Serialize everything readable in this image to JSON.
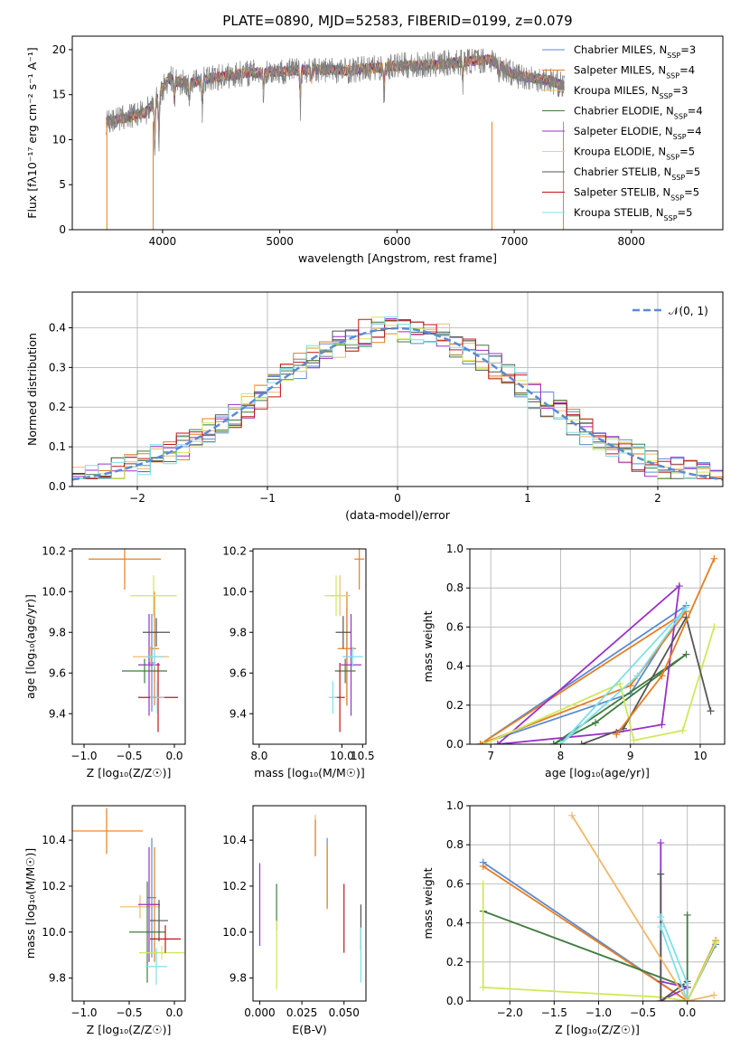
{
  "figure": {
    "title": "PLATE=0890, MJD=52583, FIBERID=0199, z=0.079"
  },
  "series": [
    {
      "name": "Chabrier MILES",
      "nssp": "3",
      "color": "#5a8ad6"
    },
    {
      "name": "Salpeter MILES",
      "nssp": "4",
      "color": "#e67e22"
    },
    {
      "name": "Kroupa MILES",
      "nssp": "3",
      "color": "#f0b86b"
    },
    {
      "name": "Chabrier ELODIE",
      "nssp": "4",
      "color": "#3f7b3f"
    },
    {
      "name": "Salpeter ELODIE",
      "nssp": "4",
      "color": "#9b30c8"
    },
    {
      "name": "Kroupa ELODIE",
      "nssp": "5",
      "color": "#cfe85a"
    },
    {
      "name": "Chabrier STELIB",
      "nssp": "5",
      "color": "#555555"
    },
    {
      "name": "Salpeter STELIB",
      "nssp": "5",
      "color": "#c0151b"
    },
    {
      "name": "Kroupa STELIB",
      "nssp": "5",
      "color": "#7ee0e8"
    }
  ],
  "chart_data": [
    {
      "id": "spectrum",
      "type": "line",
      "xlabel": "wavelength [Angstrom, rest frame]",
      "ylabel": "Flux [fλ10⁻¹⁷ erg cm⁻² s⁻¹ A⁻¹]",
      "xlim": [
        3230,
        8780
      ],
      "ylim": [
        0,
        21.5
      ],
      "xticks": [
        4000,
        5000,
        6000,
        7000,
        8000
      ],
      "yticks": [
        0,
        5,
        10,
        15,
        20
      ],
      "data_color": "#808080",
      "continuum": [
        [
          3530,
          12.0
        ],
        [
          3700,
          12.5
        ],
        [
          3850,
          13.0
        ],
        [
          3950,
          14.5
        ],
        [
          4050,
          16.8
        ],
        [
          4200,
          16.2
        ],
        [
          4400,
          16.8
        ],
        [
          4700,
          17.4
        ],
        [
          5000,
          17.6
        ],
        [
          5300,
          17.8
        ],
        [
          5600,
          17.7
        ],
        [
          6000,
          18.2
        ],
        [
          6300,
          18.3
        ],
        [
          6600,
          18.7
        ],
        [
          6800,
          18.9
        ],
        [
          7000,
          17.2
        ],
        [
          7300,
          16.6
        ],
        [
          7420,
          16.0
        ]
      ],
      "data_range": [
        3520,
        7430
      ],
      "absorption_lines": [
        [
          3934,
          7
        ],
        [
          3969,
          6
        ],
        [
          4102,
          3
        ],
        [
          4227,
          2.5
        ],
        [
          4340,
          3.5
        ],
        [
          4861,
          2.5
        ],
        [
          5175,
          4.5
        ],
        [
          5270,
          2
        ],
        [
          5890,
          3.5
        ],
        [
          6563,
          2.5
        ],
        [
          6870,
          2
        ],
        [
          7600,
          1.5
        ]
      ]
    },
    {
      "id": "residuals",
      "type": "histogram",
      "xlabel": "(data-model)/error",
      "ylabel": "Normed distribution",
      "xlim": [
        -2.5,
        2.5
      ],
      "ylim": [
        0,
        0.49
      ],
      "xticks": [
        -2,
        -1,
        0,
        1,
        2
      ],
      "yticks": [
        0.0,
        0.1,
        0.2,
        0.3,
        0.4
      ],
      "legend": "𝒩(0, 1)",
      "legend_color": "#5a8ad6",
      "bin_width": 0.1,
      "grid": true
    },
    {
      "id": "age-vs-z",
      "type": "scatter",
      "xlabel": "Z [log₁₀(Z/Z☉)]",
      "ylabel": "age  [log₁₀(age/yr)]",
      "xlim": [
        -1.13,
        0.12
      ],
      "ylim": [
        9.25,
        10.21
      ],
      "xticks": [
        -1.0,
        -0.5,
        0.0
      ],
      "yticks": [
        9.4,
        9.6,
        9.8,
        10.0,
        10.2
      ],
      "points": [
        {
          "s": 0,
          "x": -0.25,
          "xerr": 0.04,
          "y": 9.65,
          "yerr": 0.24
        },
        {
          "s": 1,
          "x": -0.22,
          "xerr": 0.05,
          "y": 9.72,
          "yerr": 0.28
        },
        {
          "s": 2,
          "x": -0.26,
          "xerr": 0.2,
          "y": 9.68,
          "yerr": 0.05
        },
        {
          "s": 3,
          "x": -0.33,
          "xerr": 0.25,
          "y": 9.61,
          "yerr": 0.06
        },
        {
          "s": 4,
          "x": -0.28,
          "xerr": 0.12,
          "y": 9.64,
          "yerr": 0.25
        },
        {
          "s": 5,
          "x": -0.23,
          "xerr": 0.26,
          "y": 9.98,
          "yerr": 0.1
        },
        {
          "s": 6,
          "x": -0.2,
          "xerr": 0.15,
          "y": 9.8,
          "yerr": 0.07
        },
        {
          "s": 7,
          "x": -0.18,
          "xerr": 0.22,
          "y": 9.48,
          "yerr": 0.17
        },
        {
          "s": 8,
          "x": -0.19,
          "xerr": 0.08,
          "y": 9.48,
          "yerr": 0.08
        },
        {
          "s": 8,
          "x": -0.22,
          "xerr": 0.1,
          "y": 9.68,
          "yerr": 0.05
        },
        {
          "s": 1,
          "x": -0.55,
          "xerr": 0.4,
          "y": 10.16,
          "yerr": 0.15
        }
      ]
    },
    {
      "id": "age-vs-mass",
      "type": "scatter",
      "xlabel": "mass [log₁₀(M/M☉)]",
      "ylabel": "",
      "xlim": [
        7.85,
        10.58
      ],
      "ylim": [
        9.25,
        10.21
      ],
      "xticks": [
        8.0,
        10.0,
        10.5
      ],
      "yticks": [
        9.4,
        9.6,
        9.8,
        10.0,
        10.2
      ],
      "points": [
        {
          "s": 0,
          "x": 10.12,
          "xerr": 0.05,
          "y": 9.68,
          "yerr": 0.24
        },
        {
          "s": 1,
          "x": 10.12,
          "xerr": 0.22,
          "y": 9.72,
          "yerr": 0.28
        },
        {
          "s": 2,
          "x": 9.95,
          "xerr": 0.25,
          "y": 9.98,
          "yerr": 0.1
        },
        {
          "s": 3,
          "x": 10.08,
          "xerr": 0.25,
          "y": 9.61,
          "yerr": 0.06
        },
        {
          "s": 4,
          "x": 10.22,
          "xerr": 0.25,
          "y": 9.64,
          "yerr": 0.25
        },
        {
          "s": 5,
          "x": 9.86,
          "xerr": 0.28,
          "y": 9.98,
          "yerr": 0.1
        },
        {
          "s": 6,
          "x": 10.03,
          "xerr": 0.18,
          "y": 9.8,
          "yerr": 0.08
        },
        {
          "s": 7,
          "x": 9.95,
          "xerr": 0.12,
          "y": 9.48,
          "yerr": 0.17
        },
        {
          "s": 8,
          "x": 9.78,
          "xerr": 0.1,
          "y": 9.48,
          "yerr": 0.08
        },
        {
          "s": 8,
          "x": 10.26,
          "xerr": 0.25,
          "y": 9.68,
          "yerr": 0.05
        },
        {
          "s": 1,
          "x": 10.42,
          "xerr": 0.12,
          "y": 10.16,
          "yerr": 0.15
        }
      ]
    },
    {
      "id": "weight-vs-age",
      "type": "line",
      "xlabel": "age  [log₁₀(age/yr)]",
      "ylabel": "mass weight",
      "xlim": [
        6.7,
        10.35
      ],
      "ylim": [
        0,
        1.0
      ],
      "xticks": [
        7,
        8,
        9,
        10
      ],
      "yticks": [
        0.0,
        0.2,
        0.4,
        0.6,
        0.8,
        1.0
      ],
      "grid": true,
      "series": [
        {
          "s": 0,
          "points": [
            [
              6.85,
              0.0
            ],
            [
              9.0,
              0.26
            ],
            [
              9.8,
              0.71
            ],
            [
              6.85,
              0.0
            ]
          ]
        },
        {
          "s": 1,
          "points": [
            [
              6.85,
              0.0
            ],
            [
              9.0,
              0.3
            ],
            [
              9.8,
              0.68
            ],
            [
              6.85,
              0.0
            ]
          ]
        },
        {
          "s": 3,
          "points": [
            [
              7.9,
              0.0
            ],
            [
              8.5,
              0.11
            ],
            [
              9.8,
              0.46
            ],
            [
              7.9,
              0.0
            ]
          ]
        },
        {
          "s": 4,
          "points": [
            [
              7.1,
              0.0
            ],
            [
              8.8,
              0.06
            ],
            [
              9.45,
              0.1
            ],
            [
              9.7,
              0.81
            ],
            [
              7.1,
              0.0
            ]
          ]
        },
        {
          "s": 5,
          "points": [
            [
              6.9,
              0.0
            ],
            [
              8.85,
              0.31
            ],
            [
              9.05,
              0.02
            ],
            [
              9.75,
              0.07
            ],
            [
              10.2,
              0.6
            ]
          ]
        },
        {
          "s": 6,
          "points": [
            [
              8.3,
              0.0
            ],
            [
              8.9,
              0.08
            ],
            [
              9.8,
              0.65
            ],
            [
              10.15,
              0.17
            ]
          ]
        },
        {
          "s": 8,
          "points": [
            [
              8.0,
              0.0
            ],
            [
              9.1,
              0.35
            ],
            [
              9.8,
              0.7
            ],
            [
              8.0,
              0.0
            ]
          ]
        },
        {
          "s": 1,
          "points": [
            [
              8.8,
              0.05
            ],
            [
              9.45,
              0.35
            ],
            [
              10.2,
              0.95
            ]
          ]
        }
      ]
    },
    {
      "id": "mass-vs-z",
      "type": "scatter",
      "xlabel": "Z [log₁₀(Z/Z☉)]",
      "ylabel": "mass [log₁₀(M/M☉)]",
      "xlim": [
        -1.13,
        0.12
      ],
      "ylim": [
        9.7,
        10.55
      ],
      "xticks": [
        -1.0,
        -0.5,
        0.0
      ],
      "yticks": [
        9.8,
        10.0,
        10.2,
        10.4
      ],
      "points": [
        {
          "s": 0,
          "x": -0.25,
          "xerr": 0.05,
          "y": 10.15,
          "yerr": 0.26
        },
        {
          "s": 1,
          "x": -0.22,
          "xerr": 0.04,
          "y": 10.12,
          "yerr": 0.25
        },
        {
          "s": 2,
          "x": -0.38,
          "xerr": 0.22,
          "y": 10.11,
          "yerr": 0.05
        },
        {
          "s": 3,
          "x": -0.3,
          "xerr": 0.2,
          "y": 10.0,
          "yerr": 0.22
        },
        {
          "s": 4,
          "x": -0.28,
          "xerr": 0.12,
          "y": 10.12,
          "yerr": 0.25
        },
        {
          "s": 5,
          "x": -0.14,
          "xerr": 0.25,
          "y": 9.91,
          "yerr": 0.03
        },
        {
          "s": 6,
          "x": -0.17,
          "xerr": 0.1,
          "y": 10.05,
          "yerr": 0.09
        },
        {
          "s": 7,
          "x": -0.1,
          "xerr": 0.17,
          "y": 9.97,
          "yerr": 0.06
        },
        {
          "s": 8,
          "x": -0.2,
          "xerr": 0.12,
          "y": 9.85,
          "yerr": 0.08
        },
        {
          "s": 1,
          "x": -0.75,
          "xerr": 0.4,
          "y": 10.44,
          "yerr": 0.1
        }
      ]
    },
    {
      "id": "mass-vs-ebv",
      "type": "scatter",
      "xlabel": "E(B-V)",
      "ylabel": "",
      "xlim": [
        -0.004,
        0.063
      ],
      "ylim": [
        9.7,
        10.55
      ],
      "xticks": [
        0.0,
        0.025,
        0.05
      ],
      "yticks": [
        9.8,
        10.0,
        10.2,
        10.4
      ],
      "points": [
        {
          "s": 0,
          "x": 0.04,
          "xerr": 0,
          "y": 10.26,
          "yerr": 0.15
        },
        {
          "s": 1,
          "x": 0.04,
          "xerr": 0,
          "y": 10.24,
          "yerr": 0.14
        },
        {
          "s": 2,
          "x": 0.033,
          "xerr": 0,
          "y": 10.42,
          "yerr": 0.09
        },
        {
          "s": 3,
          "x": 0.01,
          "xerr": 0,
          "y": 10.11,
          "yerr": 0.1
        },
        {
          "s": 4,
          "x": 0.0,
          "xerr": 0,
          "y": 10.12,
          "yerr": 0.18
        },
        {
          "s": 5,
          "x": 0.01,
          "xerr": 0,
          "y": 9.9,
          "yerr": 0.15
        },
        {
          "s": 6,
          "x": 0.06,
          "xerr": 0,
          "y": 10.02,
          "yerr": 0.1
        },
        {
          "s": 7,
          "x": 0.05,
          "xerr": 0,
          "y": 10.06,
          "yerr": 0.15
        },
        {
          "s": 8,
          "x": 0.06,
          "xerr": 0,
          "y": 9.9,
          "yerr": 0.12
        },
        {
          "s": 1,
          "x": 0.033,
          "xerr": 0,
          "y": 10.41,
          "yerr": 0.08
        }
      ]
    },
    {
      "id": "weight-vs-z",
      "type": "line",
      "xlabel": "Z [log₁₀(Z/Z☉)]",
      "ylabel": "mass weight",
      "xlim": [
        -2.45,
        0.42
      ],
      "ylim": [
        0,
        1.0
      ],
      "xticks": [
        -2.0,
        -1.5,
        -1.0,
        -0.5,
        0.0
      ],
      "yticks": [
        0.0,
        0.2,
        0.4,
        0.6,
        0.8,
        1.0
      ],
      "grid": true,
      "series": [
        {
          "s": 0,
          "points": [
            [
              -2.3,
              0.71
            ],
            [
              0.0,
              0.0
            ],
            [
              0.32,
              0.29
            ]
          ]
        },
        {
          "s": 1,
          "points": [
            [
              -2.3,
              0.69
            ],
            [
              0.0,
              0.0
            ],
            [
              0.32,
              0.31
            ]
          ]
        },
        {
          "s": 3,
          "points": [
            [
              -2.3,
              0.46
            ],
            [
              0.0,
              0.07
            ],
            [
              0.0,
              0.44
            ],
            [
              0.0,
              0.0
            ]
          ]
        },
        {
          "s": 4,
          "points": [
            [
              -0.3,
              0.81
            ],
            [
              -0.3,
              0.0
            ],
            [
              0.0,
              0.07
            ],
            [
              -0.3,
              0.1
            ]
          ]
        },
        {
          "s": 5,
          "points": [
            [
              -2.3,
              0.6
            ],
            [
              -2.3,
              0.07
            ],
            [
              -0.3,
              0.02
            ],
            [
              0.0,
              0.0
            ],
            [
              0.32,
              0.3
            ]
          ]
        },
        {
          "s": 6,
          "points": [
            [
              -0.3,
              0.65
            ],
            [
              -0.3,
              0.0
            ],
            [
              0.0,
              0.1
            ],
            [
              0.0,
              0.0
            ]
          ]
        },
        {
          "s": 8,
          "points": [
            [
              -0.3,
              0.43
            ],
            [
              0.0,
              0.09
            ],
            [
              0.0,
              0.0
            ],
            [
              -0.3,
              0.38
            ]
          ]
        },
        {
          "s": 2,
          "points": [
            [
              -1.3,
              0.95
            ],
            [
              0.0,
              0.0
            ],
            [
              0.3,
              0.03
            ]
          ]
        }
      ]
    }
  ]
}
